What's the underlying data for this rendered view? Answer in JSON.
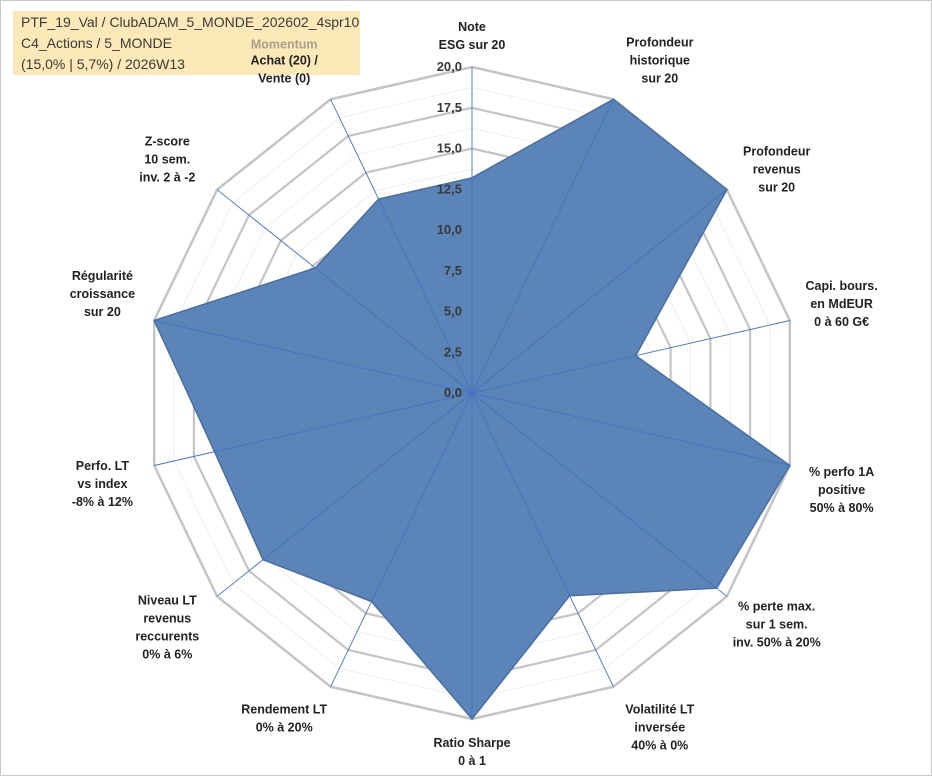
{
  "header": {
    "line1": "PTF_19_Val / ClubADAM_5_MONDE_202602_4spr10",
    "line2": "C4_Actions / 5_MONDE",
    "line3": "(15,0% | 5,7%) / 2026W13"
  },
  "chart_data": {
    "type": "radar",
    "title": "",
    "range": [
      0,
      20
    ],
    "ticks": [
      "0,0",
      "2,5",
      "5,0",
      "7,5",
      "10,0",
      "12,5",
      "15,0",
      "17,5",
      "20,0"
    ],
    "annotation": "Momentum",
    "axes": [
      {
        "label": [
          "Note",
          "ESG sur 20"
        ],
        "value": 13.2
      },
      {
        "label": [
          "Profondeur",
          "historique",
          "sur 20"
        ],
        "value": 20
      },
      {
        "label": [
          "Profondeur",
          "revenus",
          "sur 20"
        ],
        "value": 20
      },
      {
        "label": [
          "Capi. bours.",
          "en MdEUR",
          "0 à 60 G€"
        ],
        "value": 10.3
      },
      {
        "label": [
          "% perfo 1A",
          "positive",
          "50% à 80%"
        ],
        "value": 20
      },
      {
        "label": [
          "% perte max.",
          "sur 1 sem.",
          "inv. 50% à 20%"
        ],
        "value": 19.2
      },
      {
        "label": [
          "Volatilité LT",
          "inversée",
          "40% à 0%"
        ],
        "value": 13.8
      },
      {
        "label": [
          "Ratio Sharpe",
          "0 à 1"
        ],
        "value": 20
      },
      {
        "label": [
          "Rendement LT",
          "0% à 20%"
        ],
        "value": 14.2
      },
      {
        "label": [
          "Niveau LT",
          "revenus",
          "reccurents",
          "0% à 6%"
        ],
        "value": 16.4
      },
      {
        "label": [
          "Perfo. LT",
          "vs index",
          "-8% à 12%"
        ],
        "value": 16.2
      },
      {
        "label": [
          "Régularité",
          "croissance",
          "sur 20"
        ],
        "value": 20
      },
      {
        "label": [
          "Z-score",
          "10 sem.",
          "inv. 2 à -2"
        ],
        "value": 12.3
      },
      {
        "label": [
          "Achat (20) /",
          "Vente (0)"
        ],
        "value": 13.2
      }
    ],
    "colors": {
      "fill": "#5b84b8",
      "stroke": "#4a6ea0",
      "spoke": "#4472c4",
      "grid_major": "#c4c4c4",
      "grid_minor": "#eeeeee"
    }
  }
}
